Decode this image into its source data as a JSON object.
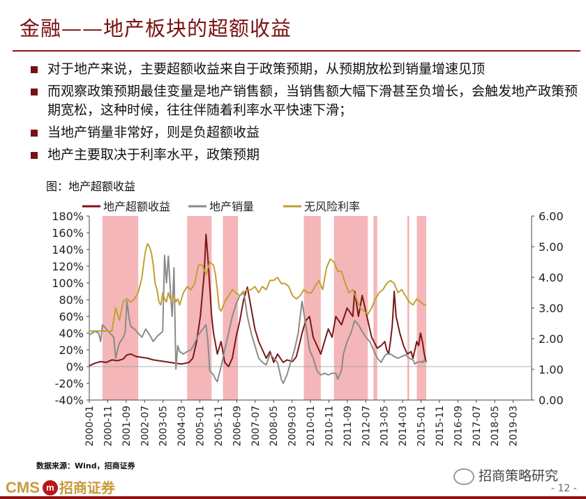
{
  "title": "金融——地产板块的超额收益",
  "bullets": [
    "对于地产来说，主要超额收益来自于政策预期，从预期放松到销量增速见顶",
    "而观察政策预期最佳变量是地产销售额，当销售额大幅下滑甚至负增长，会触发地产政策预期宽松，这种时候，往往伴随着利率水平快速下滑；",
    "当地产销量非常好，则是负超额收益",
    "地产主要取决于利率水平，政策预期"
  ],
  "figure_caption": "图：地产超额收益",
  "source": "数据来源：Wind，招商证券",
  "logo": {
    "en": "CMS",
    "mark": "m",
    "cn": "招商证券"
  },
  "wechat_account": "招商策略研究",
  "page_number": "- 12 -",
  "colors": {
    "brand": "#8c1414",
    "excess": "#7b1616",
    "sales": "#8a8a8a",
    "rate": "#c1a032",
    "shade": "#f4b6b8"
  },
  "chart_data": {
    "type": "line",
    "legend_position": "top",
    "y_left": {
      "ticks": [
        "180%",
        "160%",
        "140%",
        "120%",
        "100%",
        "80%",
        "60%",
        "40%",
        "20%",
        "0%",
        "-20%",
        "-40%"
      ],
      "range": [
        -40,
        180
      ]
    },
    "y_right": {
      "ticks": [
        "6.00",
        "5.00",
        "4.00",
        "3.00",
        "2.00",
        "1.00",
        "0.00"
      ],
      "range": [
        0,
        6
      ]
    },
    "x_ticks": [
      "2000-01",
      "2000-11",
      "2001-09",
      "2002-07",
      "2003-05",
      "2004-03",
      "2005-01",
      "2005-11",
      "2006-09",
      "2007-07",
      "2008-05",
      "2009-03",
      "2010-01",
      "2010-11",
      "2011-09",
      "2012-07",
      "2013-05",
      "2014-03",
      "2015-01",
      "2015-11",
      "2016-09",
      "2017-07",
      "2018-05",
      "2019-03"
    ],
    "x_range": [
      0,
      235
    ],
    "shaded_periods": [
      [
        7,
        26
      ],
      [
        52,
        65
      ],
      [
        71,
        79
      ],
      [
        114,
        123
      ],
      [
        130,
        148
      ],
      [
        151,
        153
      ],
      [
        169,
        170
      ],
      [
        174,
        179
      ]
    ],
    "series": [
      {
        "name": "地产超额收益",
        "axis": "left",
        "color": "#7b1616",
        "points": [
          [
            0,
            1
          ],
          [
            3,
            4
          ],
          [
            6,
            6
          ],
          [
            9,
            5
          ],
          [
            12,
            8
          ],
          [
            15,
            7
          ],
          [
            18,
            9
          ],
          [
            20,
            14
          ],
          [
            22,
            15
          ],
          [
            25,
            12
          ],
          [
            28,
            11
          ],
          [
            31,
            10
          ],
          [
            34,
            8
          ],
          [
            37,
            7
          ],
          [
            40,
            6
          ],
          [
            43,
            5
          ],
          [
            46,
            4
          ],
          [
            49,
            3
          ],
          [
            51,
            4
          ],
          [
            53,
            5
          ],
          [
            55,
            10
          ],
          [
            57,
            30
          ],
          [
            59,
            60
          ],
          [
            61,
            110
          ],
          [
            62,
            158
          ],
          [
            63,
            130
          ],
          [
            64,
            95
          ],
          [
            65,
            60
          ],
          [
            66,
            40
          ],
          [
            68,
            15
          ],
          [
            70,
            30
          ],
          [
            72,
            5
          ],
          [
            74,
            0
          ],
          [
            76,
            10
          ],
          [
            78,
            35
          ],
          [
            80,
            55
          ],
          [
            82,
            80
          ],
          [
            84,
            95
          ],
          [
            86,
            70
          ],
          [
            88,
            45
          ],
          [
            90,
            30
          ],
          [
            92,
            20
          ],
          [
            94,
            10
          ],
          [
            96,
            18
          ],
          [
            98,
            5
          ],
          [
            100,
            15
          ],
          [
            103,
            5
          ],
          [
            105,
            8
          ],
          [
            108,
            6
          ],
          [
            110,
            12
          ],
          [
            112,
            30
          ],
          [
            113,
            40
          ],
          [
            115,
            55
          ],
          [
            117,
            60
          ],
          [
            119,
            35
          ],
          [
            121,
            25
          ],
          [
            123,
            15
          ],
          [
            125,
            30
          ],
          [
            127,
            45
          ],
          [
            129,
            35
          ],
          [
            131,
            60
          ],
          [
            134,
            50
          ],
          [
            137,
            70
          ],
          [
            140,
            60
          ],
          [
            141,
            90
          ],
          [
            143,
            60
          ],
          [
            145,
            85
          ],
          [
            148,
            55
          ],
          [
            150,
            35
          ],
          [
            153,
            22
          ],
          [
            155,
            25
          ],
          [
            157,
            30
          ],
          [
            158,
            20
          ],
          [
            159,
            15
          ],
          [
            160,
            30
          ],
          [
            161,
            50
          ],
          [
            162,
            90
          ],
          [
            163,
            60
          ],
          [
            165,
            40
          ],
          [
            167,
            25
          ],
          [
            169,
            15
          ],
          [
            171,
            18
          ],
          [
            172,
            10
          ],
          [
            173,
            20
          ],
          [
            174,
            30
          ],
          [
            175,
            25
          ],
          [
            176,
            40
          ],
          [
            177,
            30
          ],
          [
            178,
            15
          ],
          [
            179,
            5
          ]
        ]
      },
      {
        "name": "地产销量",
        "axis": "left",
        "color": "#8a8a8a",
        "points": [
          [
            0,
            38
          ],
          [
            3,
            42
          ],
          [
            5,
            40
          ],
          [
            6,
            30
          ],
          [
            7,
            50
          ],
          [
            9,
            45
          ],
          [
            11,
            40
          ],
          [
            13,
            35
          ],
          [
            14,
            10
          ],
          [
            15,
            20
          ],
          [
            16,
            28
          ],
          [
            18,
            35
          ],
          [
            19,
            40
          ],
          [
            20,
            78
          ],
          [
            21,
            60
          ],
          [
            22,
            48
          ],
          [
            24,
            45
          ],
          [
            26,
            40
          ],
          [
            28,
            35
          ],
          [
            30,
            45
          ],
          [
            32,
            38
          ],
          [
            34,
            30
          ],
          [
            36,
            36
          ],
          [
            38,
            40
          ],
          [
            39,
            42
          ],
          [
            40,
            133
          ],
          [
            41,
            100
          ],
          [
            42,
            132
          ],
          [
            43,
            95
          ],
          [
            44,
            60
          ],
          [
            45,
            118
          ],
          [
            46,
            -3
          ],
          [
            47,
            25
          ],
          [
            48,
            18
          ],
          [
            50,
            15
          ],
          [
            52,
            18
          ],
          [
            54,
            20
          ],
          [
            56,
            28
          ],
          [
            58,
            38
          ],
          [
            60,
            44
          ],
          [
            62,
            50
          ],
          [
            63,
            30
          ],
          [
            64,
            -5
          ],
          [
            66,
            -10
          ],
          [
            67,
            -15
          ],
          [
            68,
            -18
          ],
          [
            70,
            0
          ],
          [
            72,
            20
          ],
          [
            74,
            40
          ],
          [
            76,
            60
          ],
          [
            78,
            75
          ],
          [
            80,
            85
          ],
          [
            82,
            90
          ],
          [
            84,
            60
          ],
          [
            86,
            40
          ],
          [
            88,
            25
          ],
          [
            90,
            10
          ],
          [
            92,
            5
          ],
          [
            94,
            2
          ],
          [
            96,
            15
          ],
          [
            98,
            10
          ],
          [
            100,
            5
          ],
          [
            102,
            -15
          ],
          [
            103,
            -20
          ],
          [
            105,
            -10
          ],
          [
            107,
            5
          ],
          [
            109,
            20
          ],
          [
            111,
            40
          ],
          [
            113,
            78
          ],
          [
            115,
            50
          ],
          [
            117,
            20
          ],
          [
            119,
            10
          ],
          [
            121,
            -5
          ],
          [
            123,
            -10
          ],
          [
            125,
            -8
          ],
          [
            127,
            -10
          ],
          [
            129,
            -8
          ],
          [
            131,
            -8
          ],
          [
            132,
            -15
          ],
          [
            134,
            -5
          ],
          [
            135,
            15
          ],
          [
            137,
            30
          ],
          [
            139,
            40
          ],
          [
            141,
            55
          ],
          [
            143,
            50
          ],
          [
            145,
            42
          ],
          [
            147,
            35
          ],
          [
            149,
            30
          ],
          [
            151,
            20
          ],
          [
            153,
            10
          ],
          [
            155,
            5
          ],
          [
            157,
            13
          ],
          [
            158,
            15
          ],
          [
            160,
            15
          ],
          [
            162,
            12
          ],
          [
            164,
            10
          ],
          [
            166,
            12
          ],
          [
            168,
            14
          ],
          [
            170,
            10
          ],
          [
            172,
            8
          ],
          [
            173,
            3
          ],
          [
            174,
            5
          ],
          [
            176,
            6
          ],
          [
            177,
            5
          ],
          [
            178,
            8
          ],
          [
            179,
            5
          ]
        ]
      },
      {
        "name": "无风险利率",
        "axis": "right",
        "color": "#c1a032",
        "points": [
          [
            0,
            2.25
          ],
          [
            6,
            2.25
          ],
          [
            12,
            2.25
          ],
          [
            14,
            3.0
          ],
          [
            16,
            2.6
          ],
          [
            18,
            3.2
          ],
          [
            20,
            3.3
          ],
          [
            22,
            3.2
          ],
          [
            24,
            3.3
          ],
          [
            26,
            3.5
          ],
          [
            28,
            4.0
          ],
          [
            29,
            4.5
          ],
          [
            30,
            4.9
          ],
          [
            31,
            5.1
          ],
          [
            32,
            5.0
          ],
          [
            33,
            4.8
          ],
          [
            34,
            4.4
          ],
          [
            35,
            3.8
          ],
          [
            36,
            3.6
          ],
          [
            37,
            3.2
          ],
          [
            38,
            3.1
          ],
          [
            39,
            3.5
          ],
          [
            40,
            3.3
          ],
          [
            41,
            3.2
          ],
          [
            42,
            3.5
          ],
          [
            43,
            3.3
          ],
          [
            44,
            3.2
          ],
          [
            45,
            3.4
          ],
          [
            46,
            3.2
          ],
          [
            47,
            3.3
          ],
          [
            48,
            3.1
          ],
          [
            50,
            3.5
          ],
          [
            52,
            3.7
          ],
          [
            54,
            3.6
          ],
          [
            56,
            3.8
          ],
          [
            58,
            4.4
          ],
          [
            60,
            4.4
          ],
          [
            62,
            4.1
          ],
          [
            64,
            4.5
          ],
          [
            66,
            4.4
          ],
          [
            67,
            4.1
          ],
          [
            68,
            3.6
          ],
          [
            69,
            3.0
          ],
          [
            70,
            2.9
          ],
          [
            72,
            3.2
          ],
          [
            74,
            3.4
          ],
          [
            76,
            3.6
          ],
          [
            78,
            3.5
          ],
          [
            80,
            3.4
          ],
          [
            82,
            3.5
          ],
          [
            84,
            3.6
          ],
          [
            86,
            3.6
          ],
          [
            88,
            3.7
          ],
          [
            90,
            3.5
          ],
          [
            92,
            3.7
          ],
          [
            94,
            3.6
          ],
          [
            96,
            3.9
          ],
          [
            98,
            3.9
          ],
          [
            100,
            4.0
          ],
          [
            102,
            3.8
          ],
          [
            104,
            3.8
          ],
          [
            106,
            3.7
          ],
          [
            108,
            3.4
          ],
          [
            110,
            3.3
          ],
          [
            112,
            3.4
          ],
          [
            114,
            3.6
          ],
          [
            116,
            3.5
          ],
          [
            118,
            3.5
          ],
          [
            120,
            3.7
          ],
          [
            122,
            3.9
          ],
          [
            124,
            3.6
          ],
          [
            126,
            4.3
          ],
          [
            128,
            4.6
          ],
          [
            130,
            4.5
          ],
          [
            132,
            4.2
          ],
          [
            134,
            4.2
          ],
          [
            136,
            3.8
          ],
          [
            138,
            3.5
          ],
          [
            140,
            3.6
          ],
          [
            142,
            3.3
          ],
          [
            144,
            3.0
          ],
          [
            146,
            2.9
          ],
          [
            148,
            2.8
          ],
          [
            150,
            3.0
          ],
          [
            152,
            3.3
          ],
          [
            154,
            3.5
          ],
          [
            156,
            3.6
          ],
          [
            158,
            3.8
          ],
          [
            160,
            3.9
          ],
          [
            162,
            3.8
          ],
          [
            164,
            3.5
          ],
          [
            166,
            3.6
          ],
          [
            168,
            3.4
          ],
          [
            170,
            3.2
          ],
          [
            172,
            3.1
          ],
          [
            174,
            3.3
          ],
          [
            176,
            3.2
          ],
          [
            178,
            3.1
          ],
          [
            179,
            3.1
          ]
        ]
      }
    ]
  }
}
